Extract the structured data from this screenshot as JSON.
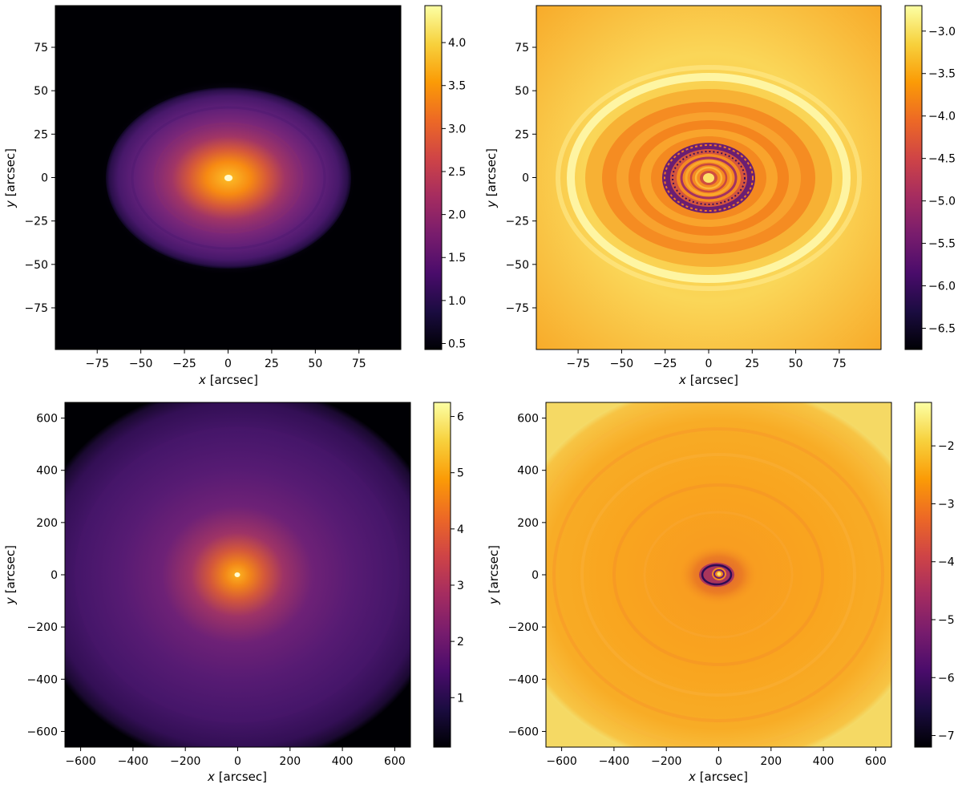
{
  "chart_data": [
    {
      "type": "heatmap",
      "panel": "top-left",
      "xlabel": {
        "var": "x",
        "unit": " [arcsec]"
      },
      "ylabel": {
        "var": "y",
        "unit": " [arcsec]"
      },
      "xlim": [
        -99,
        99
      ],
      "ylim": [
        -99,
        99
      ],
      "xticks": [
        -75,
        -50,
        -25,
        0,
        25,
        50,
        75
      ],
      "yticks": [
        -75,
        -50,
        -25,
        0,
        25,
        50,
        75
      ],
      "colorbar": {
        "min": 0.43,
        "max": 4.43,
        "ticks": [
          0.5,
          1.0,
          1.5,
          2.0,
          2.5,
          3.0,
          3.5,
          4.0
        ],
        "colormap": "inferno",
        "tick_format": "1dp"
      },
      "description_values": {
        "center_value": 4.4,
        "outer_value": 0.43,
        "ellipse_semi_axes": [
          70,
          52
        ]
      }
    },
    {
      "type": "heatmap",
      "panel": "top-right",
      "xlabel": {
        "var": "x",
        "unit": " [arcsec]"
      },
      "ylabel": {
        "var": "y",
        "unit": " [arcsec]"
      },
      "xlim": [
        -99,
        99
      ],
      "ylim": [
        -99,
        99
      ],
      "xticks": [
        -75,
        -50,
        -25,
        0,
        25,
        50,
        75
      ],
      "yticks": [
        -75,
        -50,
        -25,
        0,
        25,
        50,
        75
      ],
      "colorbar": {
        "min": -6.75,
        "max": -2.7,
        "ticks": [
          -6.5,
          -6.0,
          -5.5,
          -5.0,
          -4.5,
          -4.0,
          -3.5,
          -3.0
        ],
        "colormap": "inferno",
        "tick_format": "1dp"
      },
      "description_values": {
        "ring_semi_axes": [
          [
            85,
            60
          ],
          [
            65,
            45
          ],
          [
            30,
            22
          ]
        ]
      }
    },
    {
      "type": "heatmap",
      "panel": "bottom-left",
      "xlabel": {
        "var": "x",
        "unit": " [arcsec]"
      },
      "ylabel": {
        "var": "y",
        "unit": " [arcsec]"
      },
      "xlim": [
        -660,
        660
      ],
      "ylim": [
        -660,
        660
      ],
      "xticks": [
        -600,
        -400,
        -200,
        0,
        200,
        400,
        600
      ],
      "yticks": [
        -600,
        -400,
        -200,
        0,
        200,
        400,
        600
      ],
      "colorbar": {
        "min": 0.12,
        "max": 6.25,
        "ticks": [
          1,
          2,
          3,
          4,
          5,
          6
        ],
        "colormap": "inferno",
        "tick_format": "int"
      },
      "description_values": {
        "center_value": 6.1,
        "outer_value": 0.12
      }
    },
    {
      "type": "heatmap",
      "panel": "bottom-right",
      "xlabel": {
        "var": "x",
        "unit": " [arcsec]"
      },
      "ylabel": {
        "var": "y",
        "unit": " [arcsec]"
      },
      "xlim": [
        -660,
        660
      ],
      "ylim": [
        -660,
        660
      ],
      "xticks": [
        -600,
        -400,
        -200,
        0,
        200,
        400,
        600
      ],
      "yticks": [
        -600,
        -400,
        -200,
        0,
        200,
        400,
        600
      ],
      "colorbar": {
        "min": -7.2,
        "max": -1.25,
        "ticks": [
          -7,
          -6,
          -5,
          -4,
          -3,
          -2
        ],
        "colormap": "inferno",
        "tick_format": "int"
      },
      "description_values": {
        "center_value": -6.5,
        "background_value": -2.6
      }
    }
  ],
  "colors": {
    "inferno_stops": [
      "#000004",
      "#1b0c41",
      "#4a0c6b",
      "#781c6d",
      "#a52c60",
      "#cf4446",
      "#ed6925",
      "#fb9b06",
      "#f7d13d",
      "#fcffa4"
    ]
  }
}
